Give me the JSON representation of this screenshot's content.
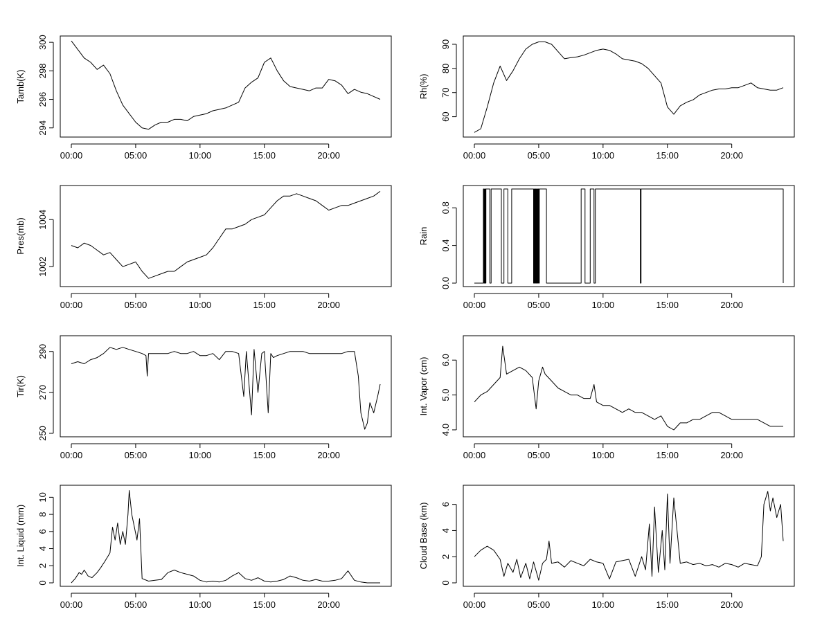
{
  "chart_data": [
    {
      "type": "line",
      "ylabel": "Tamb(K)",
      "xlim": [
        0,
        24
      ],
      "ylim": [
        293.6,
        300.2
      ],
      "xticks": [
        0,
        5,
        10,
        15,
        20
      ],
      "xtick_labels": [
        "00:00",
        "05:00",
        "10:00",
        "15:00",
        "20:00"
      ],
      "yticks": [
        294,
        296,
        298,
        300
      ],
      "ytick_labels": [
        "294",
        "296",
        "298",
        "300"
      ],
      "series": [
        {
          "x": [
            0.0,
            0.5,
            1.0,
            1.5,
            2.0,
            2.5,
            3.0,
            3.5,
            4.0,
            4.5,
            5.0,
            5.5,
            6.0,
            6.5,
            7.0,
            7.5,
            8.0,
            8.5,
            9.0,
            9.5,
            10.0,
            10.5,
            11.0,
            11.5,
            12.0,
            12.5,
            13.0,
            13.5,
            14.0,
            14.5,
            15.0,
            15.5,
            16.0,
            16.5,
            17.0,
            17.5,
            18.0,
            18.5,
            19.0,
            19.5,
            20.0,
            20.5,
            21.0,
            21.5,
            22.0,
            22.5,
            23.0,
            23.5,
            24.0
          ],
          "y": [
            300.1,
            299.5,
            298.9,
            298.6,
            298.1,
            298.4,
            297.8,
            296.6,
            295.6,
            295.0,
            294.4,
            294.0,
            293.9,
            294.2,
            294.4,
            294.4,
            294.6,
            294.6,
            294.5,
            294.8,
            294.9,
            295.0,
            295.2,
            295.3,
            295.4,
            295.6,
            295.8,
            296.8,
            297.2,
            297.5,
            298.6,
            298.9,
            298.0,
            297.3,
            296.9,
            296.8,
            296.7,
            296.6,
            296.8,
            296.8,
            297.4,
            297.3,
            297.0,
            296.4,
            296.7,
            296.5,
            296.4,
            296.2,
            296.0
          ]
        }
      ]
    },
    {
      "type": "line",
      "ylabel": "Rh(%)",
      "xlim": [
        0,
        24
      ],
      "ylim": [
        53,
        92
      ],
      "xticks": [
        0,
        5,
        10,
        15,
        20
      ],
      "xtick_labels": [
        "00:00",
        "05:00",
        "10:00",
        "15:00",
        "20:00"
      ],
      "yticks": [
        60,
        70,
        80,
        90
      ],
      "ytick_labels": [
        "60",
        "70",
        "80",
        "90"
      ],
      "series": [
        {
          "x": [
            0.0,
            0.5,
            1.0,
            1.5,
            2.0,
            2.5,
            3.0,
            3.5,
            4.0,
            4.5,
            5.0,
            5.5,
            6.0,
            6.5,
            7.0,
            7.5,
            8.0,
            8.5,
            9.0,
            9.5,
            10.0,
            10.5,
            11.0,
            11.5,
            12.0,
            12.5,
            13.0,
            13.5,
            14.0,
            14.5,
            15.0,
            15.5,
            16.0,
            16.5,
            17.0,
            17.5,
            18.0,
            18.5,
            19.0,
            19.5,
            20.0,
            20.5,
            21.0,
            21.5,
            22.0,
            22.5,
            23.0,
            23.5,
            24.0
          ],
          "y": [
            53.5,
            55.0,
            64.0,
            74.0,
            81.0,
            75.0,
            79.0,
            84.0,
            88.0,
            90.0,
            91.0,
            91.0,
            90.0,
            87.0,
            84.0,
            84.5,
            84.8,
            85.5,
            86.5,
            87.5,
            88.0,
            87.5,
            86.0,
            84.0,
            83.5,
            83.0,
            82.0,
            80.0,
            77.0,
            74.0,
            64.0,
            61.0,
            64.5,
            66.0,
            67.0,
            69.0,
            70.0,
            71.0,
            71.5,
            71.5,
            72.0,
            72.0,
            73.0,
            74.0,
            72.0,
            71.5,
            71.0,
            71.0,
            72.0
          ]
        }
      ]
    },
    {
      "type": "line",
      "ylabel": "Pres(mb)",
      "xlim": [
        0,
        24
      ],
      "ylim": [
        1001.3,
        1005.3
      ],
      "xticks": [
        0,
        5,
        10,
        15,
        20
      ],
      "xtick_labels": [
        "00:00",
        "05:00",
        "10:00",
        "15:00",
        "20:00"
      ],
      "yticks": [
        1002,
        1004
      ],
      "ytick_labels": [
        "1002",
        "1004"
      ],
      "series": [
        {
          "x": [
            0.0,
            0.5,
            1.0,
            1.5,
            2.0,
            2.5,
            3.0,
            3.5,
            4.0,
            4.5,
            5.0,
            5.5,
            6.0,
            6.5,
            7.0,
            7.5,
            8.0,
            8.5,
            9.0,
            9.5,
            10.0,
            10.5,
            11.0,
            11.5,
            12.0,
            12.5,
            13.0,
            13.5,
            14.0,
            14.5,
            15.0,
            15.5,
            16.0,
            16.5,
            17.0,
            17.5,
            18.0,
            18.5,
            19.0,
            19.5,
            20.0,
            20.5,
            21.0,
            21.5,
            22.0,
            22.5,
            23.0,
            23.5,
            24.0
          ],
          "y": [
            1002.9,
            1002.8,
            1003.0,
            1002.9,
            1002.7,
            1002.5,
            1002.6,
            1002.3,
            1002.0,
            1002.1,
            1002.2,
            1001.8,
            1001.5,
            1001.6,
            1001.7,
            1001.8,
            1001.8,
            1002.0,
            1002.2,
            1002.3,
            1002.4,
            1002.5,
            1002.8,
            1003.2,
            1003.6,
            1003.6,
            1003.7,
            1003.8,
            1004.0,
            1004.1,
            1004.2,
            1004.5,
            1004.8,
            1005.0,
            1005.0,
            1005.1,
            1005.0,
            1004.9,
            1004.8,
            1004.6,
            1004.4,
            1004.5,
            1004.6,
            1004.6,
            1004.7,
            1004.8,
            1004.9,
            1005.0,
            1005.2
          ]
        }
      ]
    },
    {
      "type": "line",
      "ylabel": "Rain",
      "xlim": [
        0,
        24
      ],
      "ylim": [
        0,
        1
      ],
      "xticks": [
        0,
        5,
        10,
        15,
        20
      ],
      "xtick_labels": [
        "00:00",
        "05:00",
        "10:00",
        "15:00",
        "20:00"
      ],
      "yticks": [
        0.0,
        0.4,
        0.8
      ],
      "ytick_labels": [
        "0.0",
        "0.4",
        "0.8"
      ],
      "step": true,
      "series": [
        {
          "x": [
            0.0,
            0.7,
            0.75,
            0.8,
            0.85,
            0.9,
            1.2,
            1.3,
            2.1,
            2.3,
            2.6,
            2.9,
            3.1,
            3.15,
            4.6,
            4.65,
            4.7,
            4.75,
            4.8,
            4.85,
            4.9,
            4.95,
            5.0,
            5.05,
            5.6,
            8.3,
            8.6,
            9.0,
            9.3,
            9.4,
            12.9,
            12.95,
            24.0
          ],
          "y": [
            0,
            1,
            0,
            1,
            0,
            1,
            0,
            1,
            0,
            1,
            0,
            1,
            1,
            1,
            0,
            1,
            0,
            1,
            0,
            1,
            0,
            1,
            0,
            1,
            0,
            1,
            0,
            1,
            0,
            1,
            0,
            1,
            0
          ]
        }
      ]
    },
    {
      "type": "line",
      "ylabel": "Tir(K)",
      "xlim": [
        0,
        24
      ],
      "ylim": [
        250,
        296
      ],
      "xticks": [
        0,
        5,
        10,
        15,
        20
      ],
      "xtick_labels": [
        "00:00",
        "05:00",
        "10:00",
        "15:00",
        "20:00"
      ],
      "yticks": [
        250,
        270,
        290
      ],
      "ytick_labels": [
        "250",
        "270",
        "290"
      ],
      "series": [
        {
          "x": [
            0.0,
            0.5,
            1.0,
            1.5,
            2.0,
            2.5,
            3.0,
            3.5,
            4.0,
            4.5,
            5.0,
            5.5,
            5.8,
            5.9,
            6.0,
            6.5,
            7.0,
            7.5,
            8.0,
            8.5,
            9.0,
            9.5,
            10.0,
            10.5,
            11.0,
            11.5,
            12.0,
            12.5,
            13.0,
            13.4,
            13.6,
            14.0,
            14.2,
            14.5,
            14.8,
            15.0,
            15.3,
            15.5,
            15.7,
            16.0,
            16.5,
            17.0,
            17.5,
            18.0,
            18.5,
            19.0,
            19.5,
            20.0,
            20.5,
            21.0,
            21.5,
            22.0,
            22.3,
            22.5,
            22.8,
            23.0,
            23.2,
            23.5,
            23.8,
            24.0
          ],
          "y": [
            284,
            285,
            284,
            286,
            287,
            289,
            292,
            291,
            292,
            291,
            290,
            289,
            288,
            278,
            289,
            289,
            289,
            289,
            290,
            289,
            289,
            290,
            288,
            288,
            289,
            286,
            290,
            290,
            289,
            268,
            290,
            259,
            291,
            270,
            289,
            290,
            260,
            289,
            287,
            288,
            289,
            290,
            290,
            290,
            289,
            289,
            289,
            289,
            289,
            289,
            290,
            290,
            278,
            260,
            252,
            255,
            265,
            260,
            268,
            274
          ]
        }
      ]
    },
    {
      "type": "line",
      "ylabel": "Int. Vapor (cm)",
      "xlim": [
        0,
        24
      ],
      "ylim": [
        3.9,
        6.6
      ],
      "xticks": [
        0,
        5,
        10,
        15,
        20
      ],
      "xtick_labels": [
        "00:00",
        "05:00",
        "10:00",
        "15:00",
        "20:00"
      ],
      "yticks": [
        4.0,
        5.0,
        6.0
      ],
      "ytick_labels": [
        "4.0",
        "5.0",
        "6.0"
      ],
      "series": [
        {
          "x": [
            0.0,
            0.5,
            1.0,
            1.5,
            2.0,
            2.2,
            2.5,
            3.0,
            3.5,
            4.0,
            4.5,
            4.8,
            5.0,
            5.3,
            5.5,
            6.0,
            6.5,
            7.0,
            7.5,
            8.0,
            8.5,
            9.0,
            9.3,
            9.5,
            10.0,
            10.5,
            11.0,
            11.5,
            12.0,
            12.5,
            13.0,
            13.5,
            14.0,
            14.5,
            15.0,
            15.5,
            16.0,
            16.5,
            17.0,
            17.5,
            18.0,
            18.5,
            19.0,
            19.5,
            20.0,
            20.5,
            21.0,
            21.5,
            22.0,
            22.5,
            23.0,
            23.5,
            24.0
          ],
          "y": [
            4.8,
            5.0,
            5.1,
            5.3,
            5.5,
            6.4,
            5.6,
            5.7,
            5.8,
            5.7,
            5.5,
            4.6,
            5.4,
            5.8,
            5.6,
            5.4,
            5.2,
            5.1,
            5.0,
            5.0,
            4.9,
            4.9,
            5.3,
            4.8,
            4.7,
            4.7,
            4.6,
            4.5,
            4.6,
            4.5,
            4.5,
            4.4,
            4.3,
            4.4,
            4.1,
            4.0,
            4.2,
            4.2,
            4.3,
            4.3,
            4.4,
            4.5,
            4.5,
            4.4,
            4.3,
            4.3,
            4.3,
            4.3,
            4.3,
            4.2,
            4.1,
            4.1,
            4.1
          ]
        }
      ]
    },
    {
      "type": "line",
      "ylabel": "Int. Liquid (mm)",
      "xlim": [
        0,
        24
      ],
      "ylim": [
        0,
        11
      ],
      "xticks": [
        0,
        5,
        10,
        15,
        20
      ],
      "xtick_labels": [
        "00:00",
        "05:00",
        "10:00",
        "15:00",
        "20:00"
      ],
      "yticks": [
        0,
        2,
        4,
        6,
        8,
        10
      ],
      "ytick_labels": [
        "0",
        "2",
        "4",
        "6",
        "8",
        "10"
      ],
      "series": [
        {
          "x": [
            0.0,
            0.3,
            0.6,
            0.8,
            1.0,
            1.3,
            1.6,
            2.0,
            2.3,
            2.6,
            3.0,
            3.2,
            3.4,
            3.6,
            3.8,
            4.0,
            4.2,
            4.4,
            4.5,
            4.7,
            4.9,
            5.1,
            5.3,
            5.5,
            6.0,
            6.5,
            7.0,
            7.5,
            8.0,
            8.5,
            9.0,
            9.5,
            10.0,
            10.5,
            11.0,
            11.5,
            12.0,
            12.5,
            13.0,
            13.5,
            14.0,
            14.5,
            15.0,
            15.5,
            16.0,
            16.5,
            17.0,
            17.5,
            18.0,
            18.5,
            19.0,
            19.5,
            20.0,
            20.5,
            21.0,
            21.5,
            22.0,
            22.5,
            23.0,
            23.5,
            24.0
          ],
          "y": [
            0.0,
            0.5,
            1.2,
            1.0,
            1.5,
            0.8,
            0.6,
            1.2,
            1.8,
            2.5,
            3.5,
            6.5,
            5.0,
            7.0,
            4.5,
            6.0,
            4.5,
            8.0,
            10.8,
            8.0,
            6.5,
            5.0,
            7.5,
            0.5,
            0.2,
            0.3,
            0.4,
            1.2,
            1.5,
            1.2,
            1.0,
            0.8,
            0.3,
            0.1,
            0.2,
            0.1,
            0.3,
            0.8,
            1.2,
            0.5,
            0.3,
            0.6,
            0.2,
            0.1,
            0.2,
            0.4,
            0.8,
            0.6,
            0.3,
            0.2,
            0.4,
            0.2,
            0.2,
            0.3,
            0.5,
            1.4,
            0.3,
            0.1,
            0.0,
            0.0,
            0.0
          ]
        }
      ]
    },
    {
      "type": "line",
      "ylabel": "Cloud Base (km)",
      "xlim": [
        0,
        24
      ],
      "ylim": [
        0,
        7.2
      ],
      "xticks": [
        0,
        5,
        10,
        15,
        20
      ],
      "xtick_labels": [
        "00:00",
        "05:00",
        "10:00",
        "15:00",
        "20:00"
      ],
      "yticks": [
        0,
        2,
        4,
        6
      ],
      "ytick_labels": [
        "0",
        "2",
        "4",
        "6"
      ],
      "series": [
        {
          "x": [
            0.0,
            0.5,
            1.0,
            1.5,
            2.0,
            2.3,
            2.6,
            3.0,
            3.3,
            3.6,
            4.0,
            4.3,
            4.6,
            5.0,
            5.3,
            5.6,
            5.8,
            6.0,
            6.5,
            7.0,
            7.5,
            8.0,
            8.5,
            9.0,
            9.5,
            10.0,
            10.5,
            11.0,
            11.5,
            12.0,
            12.5,
            13.0,
            13.3,
            13.6,
            13.8,
            14.0,
            14.3,
            14.6,
            14.8,
            15.0,
            15.2,
            15.5,
            16.0,
            16.5,
            17.0,
            17.5,
            18.0,
            18.5,
            19.0,
            19.5,
            20.0,
            20.5,
            21.0,
            21.5,
            22.0,
            22.3,
            22.5,
            22.8,
            23.0,
            23.2,
            23.5,
            23.8,
            24.0
          ],
          "y": [
            2.0,
            2.5,
            2.8,
            2.5,
            1.8,
            0.5,
            1.5,
            0.8,
            1.8,
            0.4,
            1.5,
            0.3,
            1.6,
            0.2,
            1.5,
            1.8,
            3.2,
            1.5,
            1.6,
            1.2,
            1.7,
            1.5,
            1.3,
            1.8,
            1.6,
            1.5,
            0.3,
            1.6,
            1.7,
            1.8,
            0.5,
            2.0,
            1.0,
            4.5,
            0.5,
            5.8,
            0.8,
            4.0,
            1.0,
            6.8,
            1.5,
            6.5,
            1.5,
            1.6,
            1.4,
            1.5,
            1.3,
            1.4,
            1.2,
            1.5,
            1.4,
            1.2,
            1.5,
            1.4,
            1.3,
            2.0,
            6.0,
            7.0,
            5.5,
            6.5,
            5.0,
            6.0,
            3.2
          ]
        }
      ]
    }
  ]
}
